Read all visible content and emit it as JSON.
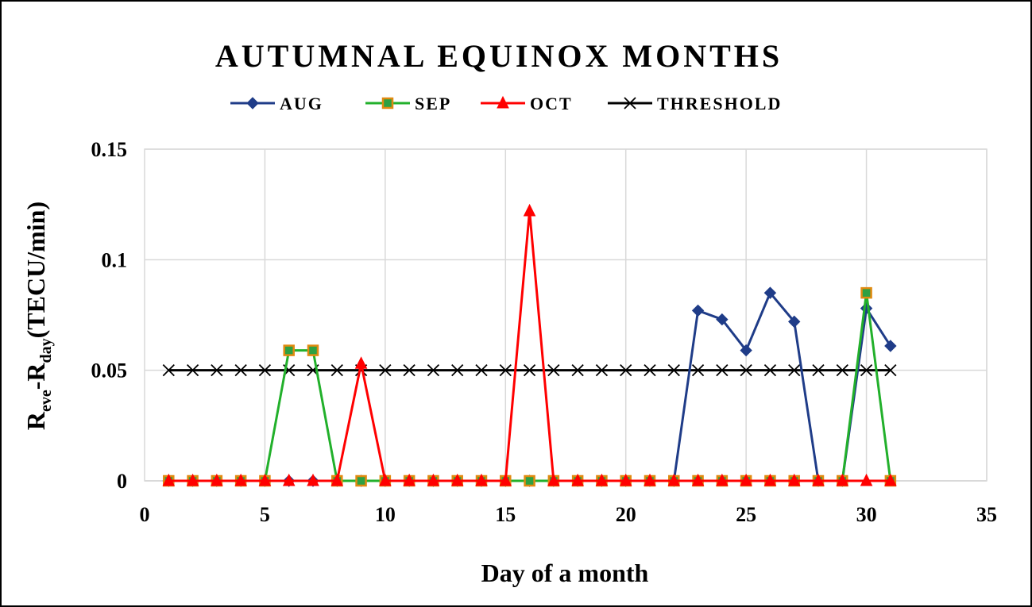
{
  "chart_data": {
    "type": "line",
    "title": "AUTUMNAL EQUINOX MONTHS",
    "xlabel": "Day of a month",
    "ylabel": {
      "main": "R",
      "sub1": "eve",
      "mid": "-R",
      "sub2": "day",
      "tail": "(TECU/min)"
    },
    "xlim": [
      0,
      35
    ],
    "ylim": [
      0,
      0.15
    ],
    "xticks": [
      "0",
      "5",
      "10",
      "15",
      "20",
      "25",
      "30",
      "35"
    ],
    "yticks": [
      "0",
      "0.05",
      "0.1",
      "0.15"
    ],
    "grid": true,
    "legend_position": "top",
    "x": [
      1,
      2,
      3,
      4,
      5,
      6,
      7,
      8,
      9,
      10,
      11,
      12,
      13,
      14,
      15,
      16,
      17,
      18,
      19,
      20,
      21,
      22,
      23,
      24,
      25,
      26,
      27,
      28,
      29,
      30,
      31
    ],
    "series": [
      {
        "name": "AUG",
        "color": "#1f3c88",
        "marker": "diamond",
        "values": [
          0,
          0,
          0,
          0,
          0,
          0,
          0,
          0,
          0,
          0,
          0,
          0,
          0,
          0,
          0,
          0,
          0,
          0,
          0,
          0,
          0,
          0,
          0.077,
          0.073,
          0.059,
          0.085,
          0.072,
          0,
          0,
          0.078,
          0.061
        ]
      },
      {
        "name": "SEP",
        "color": "#22b02b",
        "marker": "square",
        "marker_fill": "#2ea043",
        "marker_stroke": "#e08a10",
        "values": [
          0,
          0,
          0,
          0,
          0,
          0.059,
          0.059,
          0,
          0,
          0,
          0,
          0,
          0,
          0,
          0,
          0,
          0,
          0,
          0,
          0,
          0,
          0,
          0,
          0,
          0,
          0,
          0,
          0,
          0,
          0.085,
          0
        ]
      },
      {
        "name": "OCT",
        "color": "#ff0000",
        "marker": "triangle",
        "values": [
          0,
          0,
          0,
          0,
          0,
          0,
          0,
          0,
          0.053,
          0,
          0,
          0,
          0,
          0,
          0,
          0.122,
          0,
          0,
          0,
          0,
          0,
          0,
          0,
          0,
          0,
          0,
          0,
          0,
          0,
          0,
          0
        ]
      },
      {
        "name": "THRESHOLD",
        "color": "#000000",
        "marker": "x",
        "values": [
          0.05,
          0.05,
          0.05,
          0.05,
          0.05,
          0.05,
          0.05,
          0.05,
          0.05,
          0.05,
          0.05,
          0.05,
          0.05,
          0.05,
          0.05,
          0.05,
          0.05,
          0.05,
          0.05,
          0.05,
          0.05,
          0.05,
          0.05,
          0.05,
          0.05,
          0.05,
          0.05,
          0.05,
          0.05,
          0.05,
          0.05
        ]
      }
    ]
  }
}
